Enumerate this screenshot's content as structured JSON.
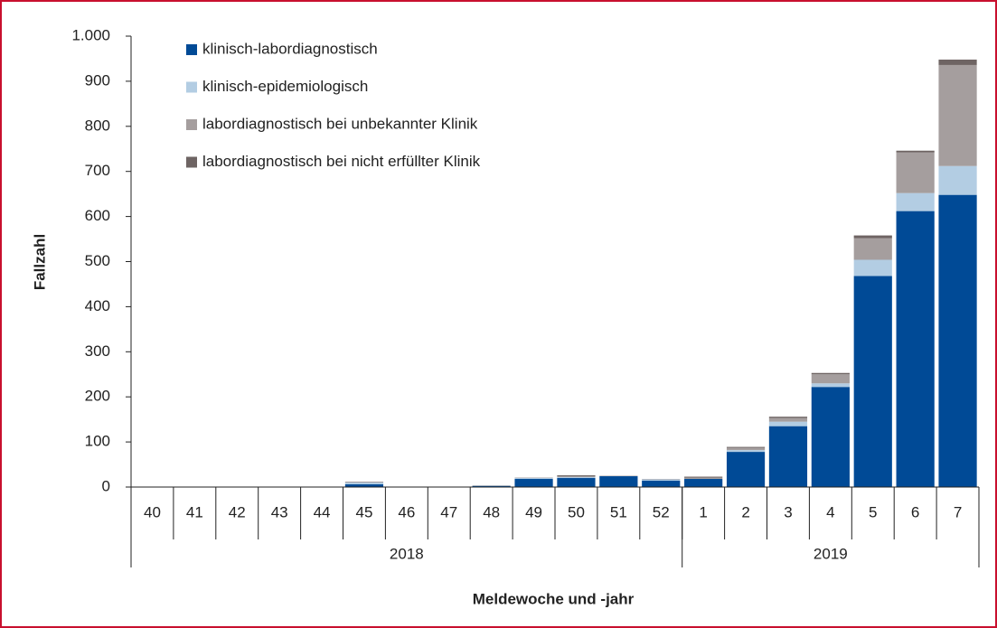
{
  "chart_data": {
    "type": "stacked-bar",
    "ylabel": "Fallzahl",
    "xlabel": "Meldewoche und -jahr",
    "groups": [
      {
        "name": "2018",
        "categories": [
          "40",
          "41",
          "42",
          "43",
          "44",
          "45",
          "46",
          "47",
          "48",
          "49",
          "50",
          "51",
          "52"
        ]
      },
      {
        "name": "2019",
        "categories": [
          "1",
          "2",
          "3",
          "4",
          "5",
          "6",
          "7"
        ]
      }
    ],
    "series": [
      {
        "name": "klinisch-labordiagnostisch",
        "color": "#004a96",
        "values": [
          0,
          0,
          0,
          0,
          0,
          6,
          0,
          0,
          2,
          18,
          20,
          24,
          14,
          18,
          78,
          135,
          222,
          468,
          612,
          648
        ]
      },
      {
        "name": "klinisch-epidemiologisch",
        "color": "#b3cde3",
        "values": [
          0,
          0,
          0,
          0,
          0,
          4,
          0,
          0,
          1,
          2,
          2,
          0,
          3,
          0,
          4,
          10,
          8,
          36,
          40,
          64
        ]
      },
      {
        "name": "labordiagnostisch bei unbekannter Klinik",
        "color": "#a59e9e",
        "values": [
          0,
          0,
          0,
          0,
          0,
          2,
          0,
          0,
          1,
          1,
          2,
          1,
          1,
          3,
          5,
          8,
          20,
          48,
          90,
          224
        ]
      },
      {
        "name": "labordiagnostisch bei nicht erfüllter Klinik",
        "color": "#6e6463",
        "values": [
          0,
          0,
          0,
          0,
          0,
          0,
          0,
          0,
          0,
          0,
          2,
          0,
          0,
          2,
          2,
          3,
          3,
          6,
          4,
          12
        ]
      }
    ],
    "ylim": [
      0,
      1000
    ],
    "yticks": [
      0,
      100,
      200,
      300,
      400,
      500,
      600,
      700,
      800,
      900,
      {
        "value": 1000,
        "label": "1.000"
      }
    ]
  }
}
